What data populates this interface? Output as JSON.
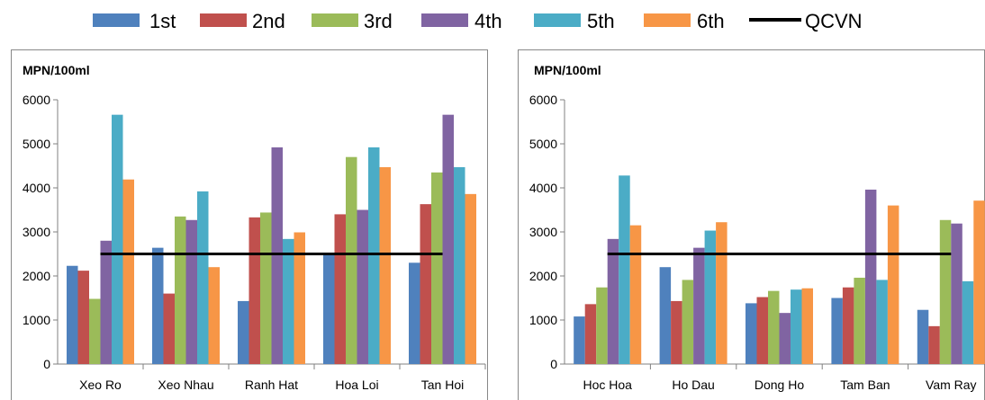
{
  "legend": {
    "items": [
      {
        "label": "1st",
        "color": "#4F81BD"
      },
      {
        "label": "2nd",
        "color": "#C0504D"
      },
      {
        "label": "3rd",
        "color": "#9BBB59"
      },
      {
        "label": "4th",
        "color": "#8064A2"
      },
      {
        "label": "5th",
        "color": "#4BACC6"
      },
      {
        "label": "6th",
        "color": "#F79646"
      },
      {
        "label": "QCVN",
        "color": "#000000"
      }
    ]
  },
  "chart_data": [
    {
      "type": "bar",
      "ylabel": "MPN/100ml",
      "ylim": [
        0,
        6000
      ],
      "yticks": [
        0,
        1000,
        2000,
        3000,
        4000,
        5000,
        6000
      ],
      "categories": [
        "Xeo Ro",
        "Xeo Nhau",
        "Ranh Hat",
        "Hoa Loi",
        "Tan Hoi"
      ],
      "series": [
        {
          "name": "1st",
          "color": "#4F81BD",
          "values": [
            2230,
            2640,
            1430,
            2500,
            2300
          ]
        },
        {
          "name": "2nd",
          "color": "#C0504D",
          "values": [
            2120,
            1600,
            3330,
            3400,
            3630
          ]
        },
        {
          "name": "3rd",
          "color": "#9BBB59",
          "values": [
            1480,
            3350,
            3440,
            4700,
            4350
          ]
        },
        {
          "name": "4th",
          "color": "#8064A2",
          "values": [
            2800,
            3270,
            4920,
            3500,
            5660
          ]
        },
        {
          "name": "5th",
          "color": "#4BACC6",
          "values": [
            5660,
            3920,
            2840,
            4920,
            4470
          ]
        },
        {
          "name": "6th",
          "color": "#F79646",
          "values": [
            4190,
            2200,
            2990,
            4470,
            3860
          ]
        }
      ],
      "reference_line": {
        "name": "QCVN",
        "value": 2500,
        "color": "#000000"
      },
      "grid": false
    },
    {
      "type": "bar",
      "ylabel": "MPN/100ml",
      "ylim": [
        0,
        6000
      ],
      "yticks": [
        0,
        1000,
        2000,
        3000,
        4000,
        5000,
        6000
      ],
      "categories": [
        "Hoc Hoa",
        "Ho Dau",
        "Dong Ho",
        "Tam Ban",
        "Vam Ray"
      ],
      "series": [
        {
          "name": "1st",
          "color": "#4F81BD",
          "values": [
            1080,
            2200,
            1380,
            1500,
            1230
          ]
        },
        {
          "name": "2nd",
          "color": "#C0504D",
          "values": [
            1360,
            1430,
            1520,
            1740,
            860
          ]
        },
        {
          "name": "3rd",
          "color": "#9BBB59",
          "values": [
            1740,
            1910,
            1660,
            1960,
            3270
          ]
        },
        {
          "name": "4th",
          "color": "#8064A2",
          "values": [
            2840,
            2640,
            1160,
            3960,
            3190
          ]
        },
        {
          "name": "5th",
          "color": "#4BACC6",
          "values": [
            4280,
            3030,
            1690,
            1910,
            1880
          ]
        },
        {
          "name": "6th",
          "color": "#F79646",
          "values": [
            3150,
            3220,
            1720,
            3600,
            3710
          ]
        }
      ],
      "reference_line": {
        "name": "QCVN",
        "value": 2500,
        "color": "#000000"
      },
      "grid": false
    }
  ]
}
